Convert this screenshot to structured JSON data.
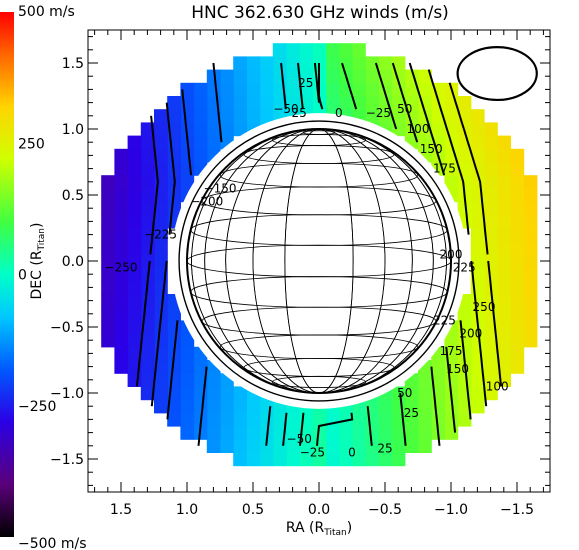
{
  "chart_data": {
    "type": "heatmap",
    "title": "HNC 362.630 GHz winds (m/s)",
    "xlabel": "RA (R",
    "xlabel_sub": "Titan",
    "xlabel_close": ")",
    "ylabel": "DEC (R",
    "ylabel_sub": "Titan",
    "ylabel_close": ")",
    "xlim": [
      1.75,
      -1.75
    ],
    "ylim": [
      -1.75,
      1.75
    ],
    "x_ticks": [
      1.5,
      1.0,
      0.5,
      0.0,
      -0.5,
      -1.0,
      -1.5
    ],
    "x_tick_labels": [
      "1.5",
      "1.0",
      "0.5",
      "0.0",
      "−0.5",
      "−1.0",
      "−1.5"
    ],
    "y_ticks": [
      1.5,
      1.0,
      0.5,
      0.0,
      -0.5,
      -1.0,
      -1.5
    ],
    "y_tick_labels": [
      "1.5",
      "1.0",
      "0.5",
      "0.0",
      "−0.5",
      "−1.0",
      "−1.5"
    ],
    "colorbar": {
      "range": [
        -500,
        500
      ],
      "labels": [
        {
          "value": 500,
          "text": "500 m/s"
        },
        {
          "value": 250,
          "text": "250"
        },
        {
          "value": 0,
          "text": "0"
        },
        {
          "value": -250,
          "text": "−250"
        },
        {
          "value": -500,
          "text": "−500 m/s"
        }
      ]
    },
    "wind_field": {
      "cell_size": 0.1,
      "radius_inner": 1.2,
      "radius_outer": 1.8,
      "model": "v = a*x + b*y"
    },
    "disk_radius": 1.0,
    "beam": {
      "x": -1.35,
      "y": 1.42,
      "rx": 0.3,
      "ry": 0.2
    },
    "contour_labels": [
      {
        "text": "25",
        "x": 0.1,
        "y": 1.35
      },
      {
        "text": "−50",
        "x": 0.25,
        "y": 1.15
      },
      {
        "text": "25",
        "x": 0.15,
        "y": 1.12
      },
      {
        "text": "0",
        "x": -0.15,
        "y": 1.12
      },
      {
        "text": "−25",
        "x": -0.45,
        "y": 1.12
      },
      {
        "text": "50",
        "x": -0.65,
        "y": 1.15
      },
      {
        "text": "100",
        "x": -0.75,
        "y": 1.0
      },
      {
        "text": "150",
        "x": -0.85,
        "y": 0.85
      },
      {
        "text": "175",
        "x": -0.95,
        "y": 0.7
      },
      {
        "text": "−150",
        "x": 0.75,
        "y": 0.55
      },
      {
        "text": "−200",
        "x": 0.85,
        "y": 0.45
      },
      {
        "text": "−225",
        "x": 1.2,
        "y": 0.2
      },
      {
        "text": "−250",
        "x": 1.5,
        "y": -0.05
      },
      {
        "text": "200",
        "x": -1.0,
        "y": 0.05
      },
      {
        "text": "225",
        "x": -1.1,
        "y": -0.05
      },
      {
        "text": "250",
        "x": -1.25,
        "y": -0.35
      },
      {
        "text": "225",
        "x": -0.95,
        "y": -0.45
      },
      {
        "text": "200",
        "x": -1.15,
        "y": -0.55
      },
      {
        "text": "175",
        "x": -1.0,
        "y": -0.68
      },
      {
        "text": "150",
        "x": -1.05,
        "y": -0.82
      },
      {
        "text": "100",
        "x": -1.35,
        "y": -0.95
      },
      {
        "text": "50",
        "x": -0.65,
        "y": -1.0
      },
      {
        "text": "25",
        "x": -0.7,
        "y": -1.15
      },
      {
        "text": "−50",
        "x": 0.15,
        "y": -1.35
      },
      {
        "text": "−25",
        "x": 0.05,
        "y": -1.45
      },
      {
        "text": "0",
        "x": -0.25,
        "y": -1.45
      },
      {
        "text": "25",
        "x": -0.5,
        "y": -1.42
      }
    ]
  }
}
